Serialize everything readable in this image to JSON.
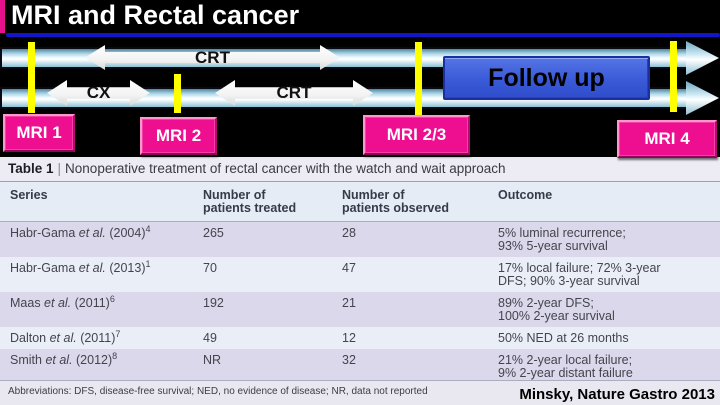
{
  "slide": {
    "title": "MRI and Rectal cancer",
    "citation": "Minsky, Nature Gastro 2013",
    "colors": {
      "accent_pink": "#ee0f90",
      "marker_yellow": "#ffff00",
      "title_rule_blue": "#1414cb",
      "followup_blue": "#3a5ad8",
      "timeline_bar_blue": "#a9d4e4",
      "table_row_lavender": "#dad8ea",
      "table_row_light": "#eaeff7"
    }
  },
  "timeline": {
    "arrows": [
      {
        "label": "CRT"
      },
      {
        "label": "CX"
      },
      {
        "label": "CRT"
      }
    ],
    "followup_label": "Follow up",
    "markers": [
      {
        "label": "MRI 1"
      },
      {
        "label": "MRI 2"
      },
      {
        "label": "MRI 2/3"
      },
      {
        "label": "MRI 4"
      }
    ]
  },
  "table": {
    "title_prefix": "Table 1",
    "title_separator": "|",
    "title_text": "Nonoperative treatment of rectal cancer with the watch and wait approach",
    "columns": [
      "Series",
      "Number of\npatients treated",
      "Number of\npatients observed",
      "Outcome"
    ],
    "rows": [
      {
        "pre": "Habr-Gama ",
        "it": "et al.",
        "post": " (2004)",
        "ref": "4",
        "treated": "265",
        "observed": "28",
        "outcome": "5% luminal recurrence;\n93% 5-year survival"
      },
      {
        "pre": "Habr-Gama ",
        "it": "et al.",
        "post": " (2013)",
        "ref": "1",
        "treated": "70",
        "observed": "47",
        "outcome": "17% local failure; 72% 3-year\nDFS; 90% 3-year survival"
      },
      {
        "pre": "Maas ",
        "it": "et al.",
        "post": " (2011)",
        "ref": "6",
        "treated": "192",
        "observed": "21",
        "outcome": "89% 2-year DFS;\n100% 2-year survival"
      },
      {
        "pre": "Dalton ",
        "it": "et al.",
        "post": " (2011)",
        "ref": "7",
        "treated": "49",
        "observed": "12",
        "outcome": "50% NED at 26 months"
      },
      {
        "pre": "Smith ",
        "it": "et al.",
        "post": " (2012)",
        "ref": "8",
        "treated": "NR",
        "observed": "32",
        "outcome": "21% 2-year local failure;\n9% 2-year distant failure"
      }
    ],
    "footnote": "Abbreviations: DFS, disease-free survival; NED, no evidence of disease; NR, data not reported"
  }
}
